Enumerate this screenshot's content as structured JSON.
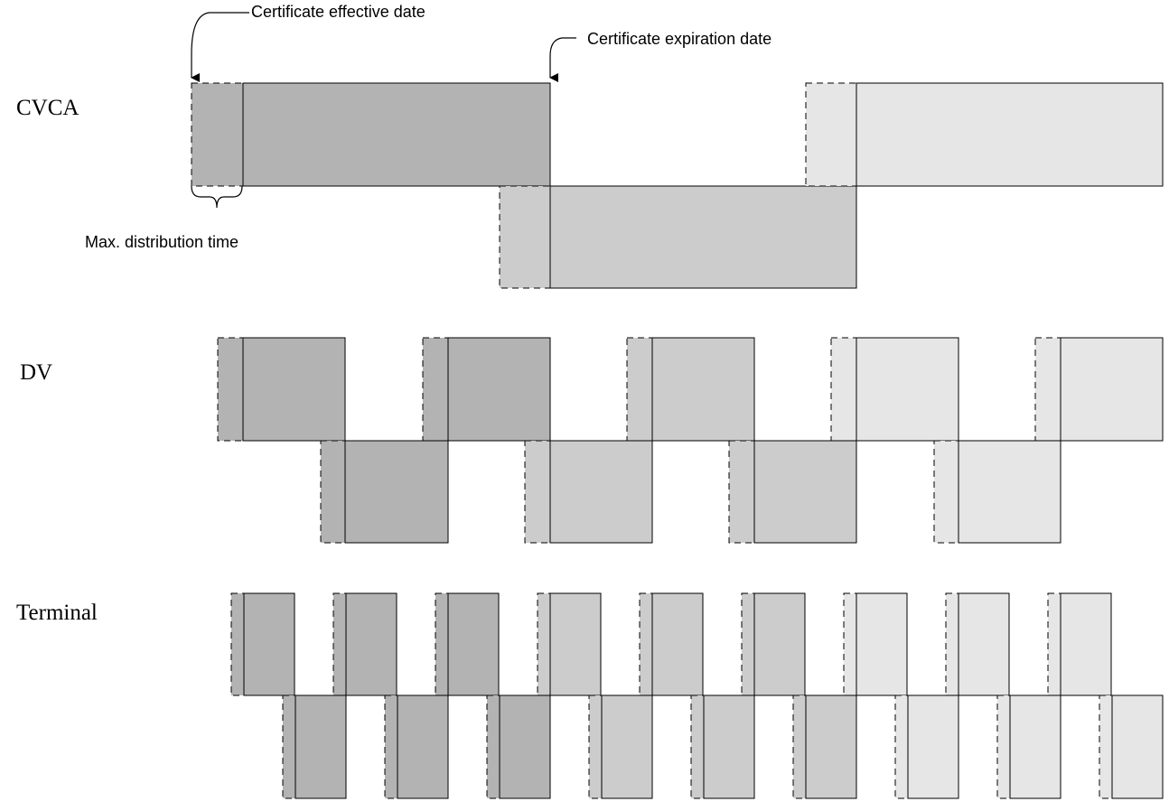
{
  "rows": [
    {
      "id": "cvca",
      "label": "CVCA"
    },
    {
      "id": "dv",
      "label": "DV"
    },
    {
      "id": "terminal",
      "label": "Terminal"
    }
  ],
  "annotations": {
    "effective_date": "Certificate effective date",
    "expiration_date": "Certificate expiration date",
    "distribution_time": "Max. distribution time"
  },
  "colors": {
    "generation_1": "#b3b3b3",
    "generation_2": "#cccccc",
    "generation_3": "#e6e6e6",
    "outline": "#000000"
  }
}
